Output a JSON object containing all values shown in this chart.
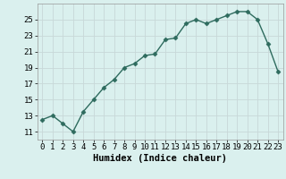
{
  "x": [
    0,
    1,
    2,
    3,
    4,
    5,
    6,
    7,
    8,
    9,
    10,
    11,
    12,
    13,
    14,
    15,
    16,
    17,
    18,
    19,
    20,
    21,
    22,
    23
  ],
  "y": [
    12.5,
    13.0,
    12.0,
    11.0,
    13.5,
    15.0,
    16.5,
    17.5,
    19.0,
    19.5,
    20.5,
    20.7,
    22.5,
    22.7,
    24.5,
    25.0,
    24.5,
    25.0,
    25.5,
    26.0,
    26.0,
    25.0,
    22.0,
    18.5
  ],
  "line_color": "#2e6b5e",
  "marker": "D",
  "marker_size": 2.5,
  "bg_color": "#daf0ee",
  "grid_color": "#c8d8d8",
  "xlabel": "Humidex (Indice chaleur)",
  "xlim": [
    -0.5,
    23.5
  ],
  "ylim": [
    10.0,
    27.0
  ],
  "xticks": [
    0,
    1,
    2,
    3,
    4,
    5,
    6,
    7,
    8,
    9,
    10,
    11,
    12,
    13,
    14,
    15,
    16,
    17,
    18,
    19,
    20,
    21,
    22,
    23
  ],
  "yticks": [
    11,
    13,
    15,
    17,
    19,
    21,
    23,
    25
  ],
  "xlabel_fontsize": 7.5,
  "tick_fontsize": 6.5
}
